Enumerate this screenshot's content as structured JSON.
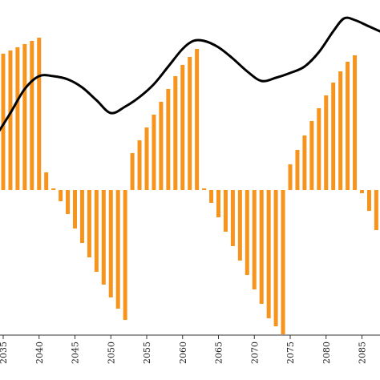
{
  "chart_data": {
    "type": "bar",
    "title": "",
    "xlabel": "",
    "ylabel": "",
    "grid": false,
    "legend": "none",
    "x_tick_labels": [
      "2035",
      "2040",
      "2045",
      "2050",
      "2055",
      "2060",
      "2065",
      "2070",
      "2075",
      "2080",
      "2085"
    ],
    "x_tick_values": [
      2035,
      2040,
      2045,
      2050,
      2055,
      2060,
      2065,
      2070,
      2075,
      2080,
      2085
    ],
    "xlim": [
      2032.5,
      2088.5
    ],
    "ylim": [
      -100,
      100
    ],
    "bars": {
      "color": "#f7941d",
      "x": [
        2032,
        2033,
        2034,
        2035,
        2036,
        2037,
        2038,
        2039,
        2040,
        2041,
        2042,
        2043,
        2044,
        2045,
        2046,
        2047,
        2048,
        2049,
        2050,
        2051,
        2052,
        2053,
        2054,
        2055,
        2056,
        2057,
        2058,
        2059,
        2060,
        2061,
        2062,
        2063,
        2064,
        2065,
        2066,
        2067,
        2068,
        2069,
        2070,
        2071,
        2072,
        2073,
        2074,
        2075,
        2076,
        2077,
        2078,
        2079,
        2080,
        2081,
        2082,
        2083,
        2084,
        2085,
        2086,
        2087,
        2088
      ],
      "values": [
        74,
        78,
        82,
        85,
        87,
        89,
        91,
        93,
        95,
        11,
        1,
        -7,
        -15,
        -24,
        -33,
        -42,
        -51,
        -59,
        -67,
        -74,
        -81,
        23,
        31,
        39,
        47,
        55,
        63,
        71,
        78,
        83,
        88,
        1,
        -8,
        -17,
        -26,
        -35,
        -44,
        -53,
        -62,
        -71,
        -80,
        -85,
        -90,
        16,
        25,
        34,
        43,
        51,
        59,
        67,
        74,
        80,
        84,
        -2,
        -13,
        -25,
        -38
      ],
      "_note": "values shown on chart as bars"
    },
    "line": {
      "color": "#000000",
      "x": [
        2032.5,
        2034,
        2036,
        2038,
        2040,
        2042,
        2044,
        2046,
        2048,
        2050,
        2052,
        2054,
        2056,
        2058,
        2060,
        2061.5,
        2063,
        2065,
        2067,
        2069,
        2071,
        2073,
        2075,
        2077,
        2079,
        2081,
        2082.5,
        2084,
        2086,
        2088.5
      ],
      "values": [
        26,
        34,
        48,
        63,
        71,
        71,
        69,
        64,
        56,
        48,
        52,
        58,
        66,
        77,
        88,
        93,
        93,
        89,
        82,
        74,
        68,
        70,
        73,
        77,
        86,
        99,
        107,
        106,
        102,
        97
      ]
    }
  }
}
